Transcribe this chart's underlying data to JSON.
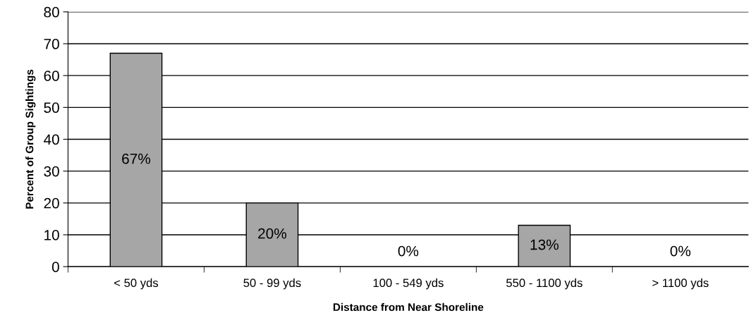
{
  "chart_data": {
    "type": "bar",
    "categories": [
      "< 50 yds",
      "50 - 99 yds",
      "100 - 549 yds",
      "550 - 1100 yds",
      "> 1100 yds"
    ],
    "values": [
      67,
      20,
      0,
      13,
      0
    ],
    "value_labels": [
      "67%",
      "20%",
      "0%",
      "13%",
      "0%"
    ],
    "color": "#a6a6a6",
    "xlabel": "Distance from Near Shoreline",
    "ylabel": "Percent of Group Sightings",
    "ylim": [
      0,
      80
    ],
    "yticks": [
      0,
      10,
      20,
      30,
      40,
      50,
      60,
      70,
      80
    ],
    "grid": "y",
    "legend": false
  }
}
